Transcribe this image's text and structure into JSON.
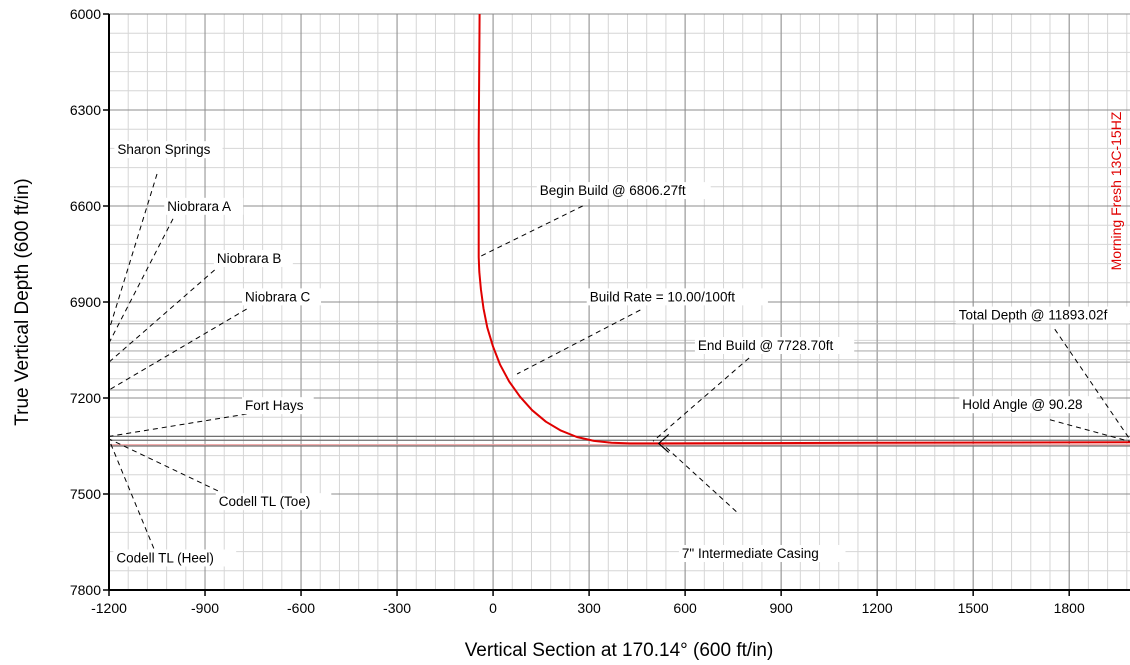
{
  "chart_data": {
    "type": "line",
    "xlabel": "Vertical Section at 170.14° (600 ft/in)",
    "ylabel": "True Vertical Depth (600 ft/in)",
    "xlim": [
      -1200,
      1990
    ],
    "ylim": [
      6000,
      7800
    ],
    "y_inverted": true,
    "x_ticks": [
      -1200,
      -900,
      -600,
      -300,
      0,
      300,
      600,
      900,
      1200,
      1500,
      1800
    ],
    "y_ticks": [
      6000,
      6300,
      6600,
      6900,
      7200,
      7500,
      7800
    ],
    "major_grid_x": 300,
    "major_grid_y": 300,
    "minor_grid_x": 60,
    "minor_grid_y": 60,
    "grid": true,
    "legend": "none",
    "series": [
      {
        "name": "Morning Fresh 13C-15HZ",
        "color": "#e00000",
        "x": [
          -42,
          -45,
          -45,
          -43,
          -38,
          -30,
          -18,
          0,
          22,
          50,
          84,
          122,
          165,
          212,
          262,
          315,
          370,
          426,
          470,
          520,
          800,
          1200,
          1600,
          1990
        ],
        "y": [
          6000,
          6400,
          6760,
          6806,
          6860,
          6920,
          6980,
          7040,
          7096,
          7148,
          7196,
          7238,
          7274,
          7302,
          7322,
          7334,
          7340,
          7342,
          7342,
          7342,
          7341,
          7340,
          7339,
          7338
        ]
      }
    ],
    "horizons": [
      {
        "y": 6968,
        "color": "#b0b0b0"
      },
      {
        "y": 7028,
        "color": "#b0b0b0"
      },
      {
        "y": 7053,
        "color": "#b0b0b0"
      },
      {
        "y": 7088,
        "color": "#b0b0b0"
      },
      {
        "y": 7175,
        "color": "#b0b0b0"
      },
      {
        "y": 7320,
        "color": "#707070"
      },
      {
        "y": 7332,
        "color": "#707070"
      },
      {
        "y": 7346,
        "color": "#f0a0a0"
      },
      {
        "y": 7350,
        "color": "#707070"
      }
    ],
    "annotations": [
      {
        "text": "Sharon Springs",
        "text_at": [
          -1174,
          6438
        ],
        "from": [
          -1050,
          6500
        ],
        "to": [
          -1200,
          6988
        ]
      },
      {
        "text": "Niobrara A",
        "text_at": [
          -1018,
          6615
        ],
        "from": [
          -1000,
          6640
        ],
        "to": [
          -1200,
          7028
        ]
      },
      {
        "text": "Niobrara B",
        "text_at": [
          -863,
          6778
        ],
        "from": [
          -870,
          6800
        ],
        "to": [
          -1200,
          7088
        ]
      },
      {
        "text": "Niobrara C",
        "text_at": [
          -775,
          6898
        ],
        "from": [
          -770,
          6922
        ],
        "to": [
          -1200,
          7175
        ]
      },
      {
        "text": "Fort Hays",
        "text_at": [
          -775,
          7238
        ],
        "from": [
          -770,
          7250
        ],
        "to": [
          -1200,
          7320
        ]
      },
      {
        "text": "Codell TL (Toe)",
        "text_at": [
          -857,
          7538
        ],
        "from": [
          -860,
          7490
        ],
        "to": [
          -1200,
          7328
        ]
      },
      {
        "text": "Codell TL (Heel)",
        "text_at": [
          -1177,
          7714
        ],
        "from": [
          -1060,
          7670
        ],
        "to": [
          -1200,
          7330
        ]
      },
      {
        "text": "Begin Build @ 6806.27ft",
        "text_at": [
          146,
          6566
        ],
        "from": [
          280,
          6600
        ],
        "to": [
          -45,
          6760
        ]
      },
      {
        "text": "Build Rate = 10.00/100ft",
        "text_at": [
          302,
          6898
        ],
        "from": [
          460,
          6925
        ],
        "to": [
          75,
          7125
        ]
      },
      {
        "text": "End Build @ 7728.70ft",
        "text_at": [
          640,
          7050
        ],
        "from": [
          800,
          7075
        ],
        "to": [
          500,
          7335
        ]
      },
      {
        "text": "7\" Intermediate Casing",
        "text_at": [
          590,
          7700
        ],
        "from": [
          760,
          7555
        ],
        "to": [
          530,
          7345
        ]
      },
      {
        "text": "Total Depth @ 11893.02f",
        "text_at": [
          1455,
          6955
        ],
        "from": [
          1755,
          6985
        ],
        "to": [
          1990,
          7330
        ]
      },
      {
        "text": "Hold Angle @ 90.28",
        "text_at": [
          1466,
          7235
        ],
        "from": [
          1740,
          7268
        ],
        "to": [
          1990,
          7336
        ]
      }
    ],
    "well_label": "Morning Fresh 13C-15HZ"
  }
}
